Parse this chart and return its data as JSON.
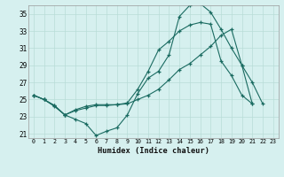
{
  "xlabel": "Humidex (Indice chaleur)",
  "bg_color": "#d6f0ef",
  "grid_color": "#b8dcd8",
  "line_color": "#1a6b61",
  "line1_y": [
    25.5,
    25.0,
    24.3,
    23.2,
    22.7,
    22.2,
    20.8,
    21.3,
    21.7,
    23.2,
    25.7,
    27.5,
    28.3,
    30.2,
    34.7,
    36.0,
    36.2,
    35.2,
    33.2,
    31.0,
    29.0,
    27.0,
    24.5,
    -999
  ],
  "line2_y": [
    25.5,
    25.0,
    24.2,
    23.2,
    23.8,
    24.2,
    24.4,
    24.4,
    24.4,
    24.5,
    25.0,
    25.5,
    26.2,
    27.3,
    28.5,
    29.2,
    30.2,
    31.2,
    32.5,
    33.2,
    29.0,
    24.5,
    -999,
    -999
  ],
  "line3_y": [
    25.5,
    25.0,
    24.3,
    23.2,
    23.7,
    24.0,
    24.3,
    24.3,
    24.4,
    24.6,
    26.2,
    28.3,
    30.8,
    31.8,
    33.0,
    33.7,
    34.0,
    33.8,
    29.5,
    27.8,
    25.5,
    24.5,
    -999,
    -999
  ],
  "yticks": [
    21,
    23,
    25,
    27,
    29,
    31,
    33,
    35
  ],
  "xticks": [
    0,
    1,
    2,
    3,
    4,
    5,
    6,
    7,
    8,
    9,
    10,
    11,
    12,
    13,
    14,
    15,
    16,
    17,
    18,
    19,
    20,
    21,
    22,
    23
  ],
  "xlim": [
    -0.5,
    23.5
  ],
  "ylim": [
    20.5,
    36.0
  ]
}
